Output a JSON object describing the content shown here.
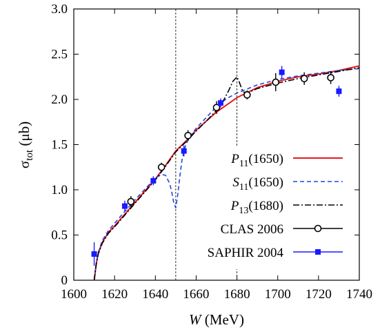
{
  "chart_data": {
    "type": "line",
    "xlabel": "W (MeV)",
    "xlabel_var": "W",
    "xlabel_unit": "(MeV)",
    "ylabel": "σtot (μb)",
    "ylabel_sym": "σ",
    "ylabel_sub": "tot",
    "ylabel_unit": "(μb)",
    "xlim": [
      1600,
      1740
    ],
    "ylim": [
      0,
      3.0
    ],
    "x_ticks": [
      1600,
      1620,
      1640,
      1660,
      1680,
      1700,
      1720,
      1740
    ],
    "x_tick_labels": [
      "1600",
      "1620",
      "1640",
      "1660",
      "1680",
      "1700",
      "1720",
      "1740"
    ],
    "y_ticks": [
      0,
      0.5,
      1.0,
      1.5,
      2.0,
      2.5,
      3.0
    ],
    "y_tick_labels": [
      "0",
      "0.5",
      "1.0",
      "1.5",
      "2.0",
      "2.5",
      "3.0"
    ],
    "vertical_lines": [
      1650,
      1680
    ],
    "grid": false,
    "legend_position": "bottom-right",
    "series": [
      {
        "name": "P11(1650)",
        "label_main": "P",
        "label_sub": "11",
        "label_rest": "(1650)",
        "kind": "line",
        "color": "#e41a1c",
        "dash": "solid",
        "x": [
          1610,
          1611,
          1612,
          1614,
          1617,
          1620,
          1625,
          1630,
          1635,
          1640,
          1645,
          1650,
          1655,
          1660,
          1665,
          1670,
          1675,
          1680,
          1690,
          1700,
          1710,
          1720,
          1730,
          1740
        ],
        "y": [
          0.0,
          0.18,
          0.3,
          0.42,
          0.53,
          0.6,
          0.73,
          0.86,
          0.99,
          1.12,
          1.27,
          1.43,
          1.54,
          1.66,
          1.76,
          1.86,
          1.94,
          2.02,
          2.13,
          2.2,
          2.25,
          2.28,
          2.32,
          2.37
        ]
      },
      {
        "name": "S11(1650)",
        "label_main": "S",
        "label_sub": "11",
        "label_rest": "(1650)",
        "kind": "line",
        "color": "#2244dd",
        "dash": "dashed",
        "x": [
          1610,
          1611,
          1612,
          1614,
          1617,
          1620,
          1625,
          1630,
          1635,
          1640,
          1643,
          1645,
          1647,
          1648,
          1649,
          1650,
          1651,
          1652,
          1653,
          1654,
          1655,
          1656,
          1658,
          1660,
          1665,
          1670,
          1675,
          1680,
          1690,
          1700,
          1710,
          1720,
          1730,
          1740
        ],
        "y": [
          0.0,
          0.19,
          0.31,
          0.44,
          0.55,
          0.63,
          0.76,
          0.89,
          1.01,
          1.13,
          1.17,
          1.16,
          1.07,
          0.98,
          0.86,
          0.8,
          0.95,
          1.15,
          1.32,
          1.43,
          1.5,
          1.55,
          1.62,
          1.68,
          1.8,
          1.92,
          2.01,
          2.07,
          2.16,
          2.22,
          2.26,
          2.29,
          2.32,
          2.34
        ]
      },
      {
        "name": "P13(1680)",
        "label_main": "P",
        "label_sub": "13",
        "label_rest": "(1680)",
        "kind": "line",
        "color": "#000000",
        "dash": "dashdot",
        "x": [
          1610,
          1611,
          1612,
          1614,
          1617,
          1620,
          1625,
          1630,
          1635,
          1640,
          1645,
          1650,
          1655,
          1660,
          1665,
          1670,
          1673,
          1676,
          1678,
          1680,
          1681,
          1683,
          1686,
          1690,
          1700,
          1710,
          1720,
          1730,
          1740
        ],
        "y": [
          0.0,
          0.17,
          0.29,
          0.41,
          0.52,
          0.59,
          0.72,
          0.85,
          0.98,
          1.11,
          1.26,
          1.42,
          1.53,
          1.65,
          1.76,
          1.88,
          1.97,
          2.1,
          2.2,
          2.25,
          2.2,
          2.08,
          2.08,
          2.12,
          2.18,
          2.23,
          2.27,
          2.31,
          2.35
        ]
      },
      {
        "name": "CLAS 2006",
        "kind": "points",
        "marker": "open-circle",
        "color": "#000000",
        "x": [
          1628,
          1643,
          1656,
          1670,
          1685,
          1699,
          1713,
          1726
        ],
        "y": [
          0.87,
          1.25,
          1.6,
          1.91,
          2.05,
          2.19,
          2.23,
          2.24
        ],
        "err": [
          0.06,
          0.05,
          0.06,
          0.07,
          0.05,
          0.1,
          0.07,
          0.07
        ]
      },
      {
        "name": "SAPHIR 2004",
        "kind": "points",
        "marker": "filled-square",
        "color": "#1a1aff",
        "x": [
          1610,
          1625,
          1639,
          1654,
          1672,
          1702,
          1730
        ],
        "y": [
          0.29,
          0.82,
          1.1,
          1.43,
          1.96,
          2.3,
          2.09
        ],
        "err": [
          0.13,
          0.06,
          0.05,
          0.06,
          0.05,
          0.07,
          0.06
        ]
      }
    ]
  }
}
